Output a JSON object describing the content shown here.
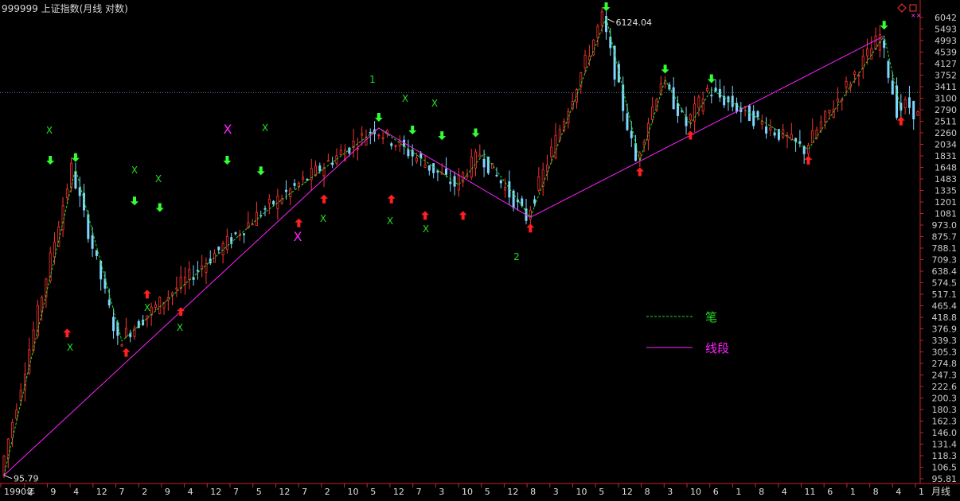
{
  "header": {
    "title": "999999 上证指数(月线 对数)"
  },
  "footer": {
    "period_label": "月线"
  },
  "legend": {
    "items": [
      {
        "label": "笔",
        "color": "#22dd22",
        "dash": true
      },
      {
        "label": "线段",
        "color": "#ff22ff",
        "dash": false
      }
    ]
  },
  "colors": {
    "up": "#ff3333",
    "down": "#7fd6ff",
    "bi": "#22dd22",
    "segment": "#ff22ff",
    "axis": "#cc2222",
    "text": "#cccccc",
    "buy_arrow": "#ff2020",
    "sell_arrow": "#33ff33"
  },
  "chart_data": {
    "type": "candlestick",
    "scale": "log",
    "ylim": [
      95.79,
      6124.04
    ],
    "y_ticks": [
      "6042",
      "5493",
      "4993",
      "4539",
      "4127",
      "3752",
      "3411",
      "3100",
      "2790",
      "2511",
      "2260",
      "2034",
      "1831",
      "1648",
      "1483",
      "1335",
      "1201",
      "1081",
      "973.0",
      "875.7",
      "788.1",
      "709.3",
      "638.4",
      "574.5",
      "517.1",
      "465.4",
      "418.8",
      "376.9",
      "339.3",
      "305.3",
      "274.8",
      "247.3",
      "222.6",
      "200.3",
      "180.3",
      "162.3",
      "146.0",
      "131.4",
      "118.3",
      "106.5",
      "95.81"
    ],
    "x_ticks": [
      "1990年",
      "2",
      "9",
      "4",
      "12",
      "7",
      "2",
      "9",
      "4",
      "12",
      "7",
      "5",
      "12",
      "7",
      "2",
      "10",
      "5",
      "12",
      "7",
      "3",
      "10",
      "5",
      "12",
      "8",
      "3",
      "10",
      "5",
      "12",
      "8",
      "3",
      "10",
      "6",
      "1",
      "8",
      "4",
      "11",
      "6",
      "1",
      "8",
      "4",
      "1"
    ],
    "reference_line": 3100,
    "annotations": {
      "max_label": "6124.04",
      "min_label": "95.79",
      "segment_numbers": [
        {
          "label": "1",
          "color": "#22dd22"
        },
        {
          "label": "2",
          "color": "#22dd22"
        }
      ],
      "x_marks": [
        "X",
        "X",
        "X",
        "X",
        "X",
        "X",
        "X",
        "X",
        "X",
        "X",
        "X",
        "X",
        "X",
        "X",
        "X"
      ]
    },
    "bi_points": [
      {
        "i": 0,
        "v": 96
      },
      {
        "i": 17,
        "v": 1558
      },
      {
        "i": 28,
        "v": 325
      },
      {
        "i": 62,
        "v": 1047
      },
      {
        "i": 89,
        "v": 2245
      },
      {
        "i": 108,
        "v": 1340
      },
      {
        "i": 114,
        "v": 1783
      },
      {
        "i": 125,
        "v": 998
      },
      {
        "i": 143,
        "v": 6124
      },
      {
        "i": 151,
        "v": 1664
      },
      {
        "i": 157,
        "v": 3478
      },
      {
        "i": 163,
        "v": 2319
      },
      {
        "i": 168,
        "v": 3186
      },
      {
        "i": 191,
        "v": 1849
      },
      {
        "i": 209,
        "v": 5178
      },
      {
        "i": 213,
        "v": 2638
      }
    ],
    "segment_points": [
      {
        "i": 0,
        "v": 96
      },
      {
        "i": 89,
        "v": 2245
      },
      {
        "i": 125,
        "v": 998
      },
      {
        "i": 209,
        "v": 5178
      }
    ],
    "sell_signals": [
      {
        "i": 11,
        "v": 1520
      },
      {
        "i": 17,
        "v": 1558
      },
      {
        "i": 31,
        "v": 1050
      },
      {
        "i": 37,
        "v": 990
      },
      {
        "i": 53,
        "v": 1520
      },
      {
        "i": 61,
        "v": 1380
      },
      {
        "i": 89,
        "v": 2245
      },
      {
        "i": 97,
        "v": 2000
      },
      {
        "i": 104,
        "v": 1900
      },
      {
        "i": 112,
        "v": 1950
      },
      {
        "i": 143,
        "v": 6124
      },
      {
        "i": 157,
        "v": 3478
      },
      {
        "i": 168,
        "v": 3186
      },
      {
        "i": 209,
        "v": 5178
      }
    ],
    "buy_signals": [
      {
        "i": 15,
        "v": 385
      },
      {
        "i": 29,
        "v": 323
      },
      {
        "i": 34,
        "v": 548
      },
      {
        "i": 42,
        "v": 468
      },
      {
        "i": 70,
        "v": 1047
      },
      {
        "i": 76,
        "v": 1300
      },
      {
        "i": 92,
        "v": 1300
      },
      {
        "i": 100,
        "v": 1120
      },
      {
        "i": 109,
        "v": 1120
      },
      {
        "i": 125,
        "v": 998
      },
      {
        "i": 151,
        "v": 1664
      },
      {
        "i": 163,
        "v": 2319
      },
      {
        "i": 191,
        "v": 1849
      },
      {
        "i": 213,
        "v": 2638
      }
    ]
  }
}
